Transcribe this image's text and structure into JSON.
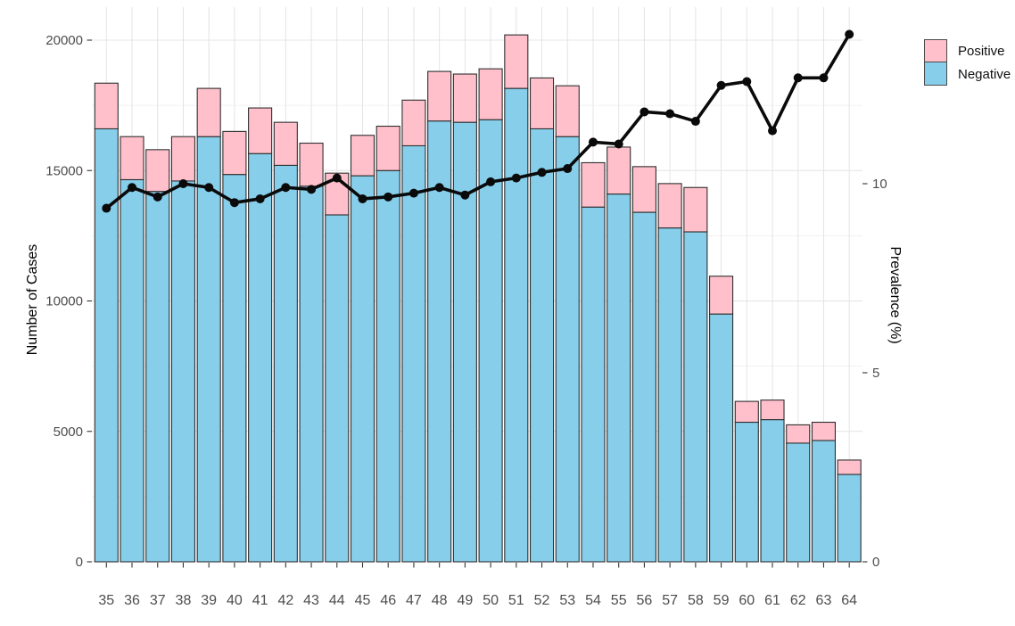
{
  "chart_data": {
    "type": "bar",
    "subtype": "stacked-bars-with-line-overlay",
    "title": "",
    "categories": [
      "35",
      "36",
      "37",
      "38",
      "39",
      "40",
      "41",
      "42",
      "43",
      "44",
      "45",
      "46",
      "47",
      "48",
      "49",
      "50",
      "51",
      "52",
      "53",
      "54",
      "55",
      "56",
      "57",
      "58",
      "59",
      "60",
      "61",
      "62",
      "63",
      "64"
    ],
    "series": [
      {
        "name": "Negative",
        "color": "#87CEEB",
        "values": [
          16600,
          14650,
          14200,
          14600,
          16300,
          14850,
          15650,
          15200,
          14400,
          13300,
          14800,
          15000,
          15950,
          16900,
          16850,
          16950,
          18150,
          16600,
          16300,
          13600,
          14100,
          13400,
          12800,
          12650,
          9500,
          5350,
          5450,
          4550,
          4650,
          3350
        ]
      },
      {
        "name": "Positive",
        "color": "#FFC0CB",
        "values": [
          1750,
          1650,
          1600,
          1700,
          1850,
          1650,
          1750,
          1650,
          1650,
          1600,
          1550,
          1700,
          1750,
          1900,
          1850,
          1950,
          2050,
          1950,
          1950,
          1700,
          1800,
          1750,
          1700,
          1700,
          1450,
          800,
          750,
          700,
          700,
          550
        ]
      }
    ],
    "line_series": {
      "name": "Prevalence",
      "color": "#0a0a0a",
      "axis": "right",
      "values": [
        9.35,
        9.9,
        9.65,
        10.0,
        9.9,
        9.5,
        9.6,
        9.9,
        9.85,
        10.15,
        9.6,
        9.65,
        9.75,
        9.9,
        9.7,
        10.05,
        10.15,
        10.3,
        10.4,
        11.1,
        11.05,
        11.9,
        11.85,
        11.65,
        12.6,
        12.7,
        11.4,
        12.8,
        12.8,
        13.95
      ]
    },
    "left_axis": {
      "label": "Number of Cases",
      "ticks": [
        0,
        5000,
        10000,
        15000,
        20000
      ],
      "minor_ticks": [
        2500,
        7500,
        12500,
        17500
      ],
      "range": [
        0,
        21270
      ]
    },
    "right_axis": {
      "label": "Prevalence (%)",
      "ticks": [
        0,
        5,
        10
      ],
      "range": [
        0,
        14.67
      ]
    },
    "x_axis": {
      "label": ""
    },
    "grid": {
      "show": true,
      "major_color": "#e4e4e4",
      "minor_color": "#f1f1f1"
    },
    "bar_outline_color": "#2f2f2f",
    "tick_label_color": "#4d4d4d",
    "legend": {
      "position": "top-right",
      "items": [
        {
          "label": "Positive",
          "color": "#FFC0CB"
        },
        {
          "label": "Negative",
          "color": "#87CEEB"
        }
      ]
    }
  }
}
